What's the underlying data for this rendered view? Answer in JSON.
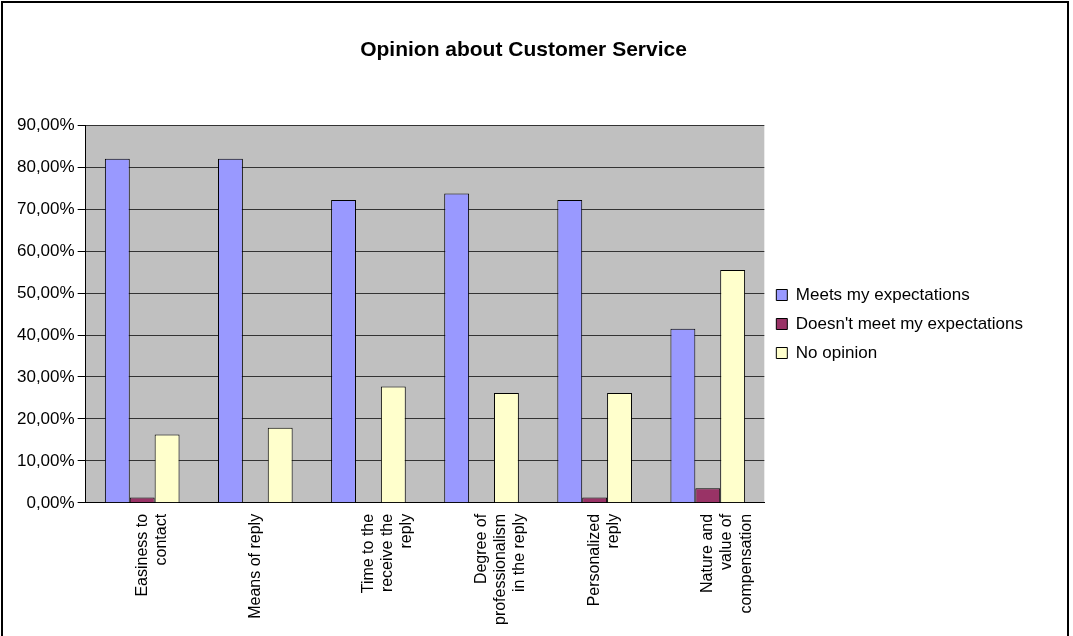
{
  "chart_data": {
    "type": "bar",
    "title": "Opinion about Customer Service",
    "categories": [
      "Easiness to contact",
      "Means of reply",
      "Time to the receive the reply",
      "Degree of professionalism in the reply",
      "Personalized reply",
      "Nature and value of compensation"
    ],
    "series": [
      {
        "name": "Meets my expectations",
        "color": "#9999ff",
        "values": [
          82,
          82,
          72.2,
          73.7,
          72.2,
          41.5
        ]
      },
      {
        "name": "Doesn't meet my expectations",
        "color": "#993366",
        "values": [
          1.3,
          0,
          0,
          0,
          1.3,
          3.5
        ]
      },
      {
        "name": "No opinion",
        "color": "#ffffcc",
        "values": [
          16.3,
          17.9,
          27.7,
          26.2,
          26.2,
          55.5
        ]
      }
    ],
    "ylim": [
      0,
      90
    ],
    "yticks": [
      {
        "value": 0,
        "label": "0,00%"
      },
      {
        "value": 10,
        "label": "10,00%"
      },
      {
        "value": 20,
        "label": "20,00%"
      },
      {
        "value": 30,
        "label": "30,00%"
      },
      {
        "value": 40,
        "label": "40,00%"
      },
      {
        "value": 50,
        "label": "50,00%"
      },
      {
        "value": 60,
        "label": "60,00%"
      },
      {
        "value": 70,
        "label": "70,00%"
      },
      {
        "value": 80,
        "label": "80,00%"
      },
      {
        "value": 90,
        "label": "90,00%"
      }
    ],
    "grid": "y",
    "legend": "right"
  }
}
